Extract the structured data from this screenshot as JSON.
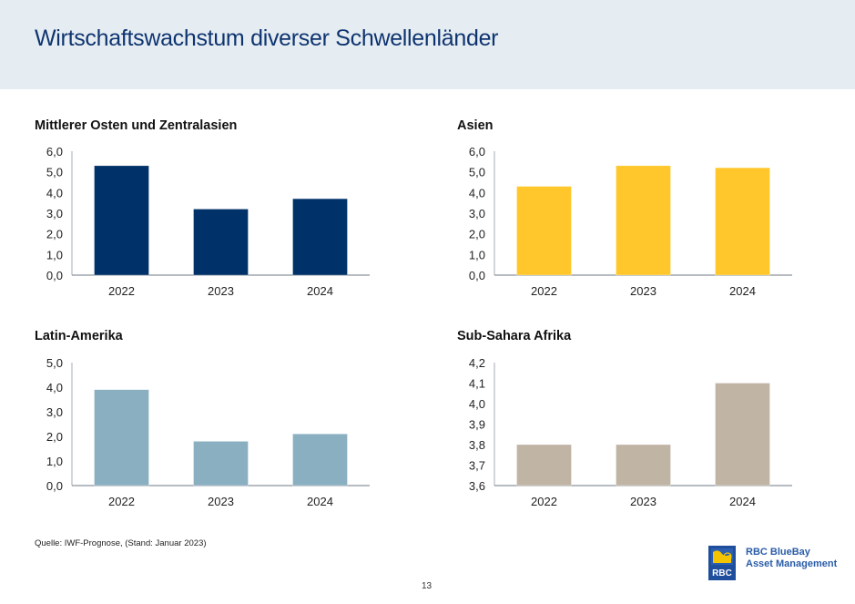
{
  "header": {
    "title": "Wirtschaftswachstum diverser Schwellenländer",
    "background": "#e6edf2",
    "title_color": "#0e3470"
  },
  "chart_data": [
    {
      "type": "bar",
      "title": "Mittlerer Osten und Zentralasien",
      "categories": [
        "2022",
        "2023",
        "2024"
      ],
      "values": [
        5.3,
        3.2,
        3.7
      ],
      "ylim": [
        0,
        6
      ],
      "yticks": [
        "0,0",
        "1,0",
        "2,0",
        "3,0",
        "4,0",
        "5,0",
        "6,0"
      ],
      "xlabel": "",
      "ylabel": "",
      "grid": false,
      "color": "#003168"
    },
    {
      "type": "bar",
      "title": "Asien",
      "categories": [
        "2022",
        "2023",
        "2024"
      ],
      "values": [
        4.3,
        5.3,
        5.2
      ],
      "ylim": [
        0,
        6
      ],
      "yticks": [
        "0,0",
        "1,0",
        "2,0",
        "3,0",
        "4,0",
        "5,0",
        "6,0"
      ],
      "xlabel": "",
      "ylabel": "",
      "grid": false,
      "color": "#ffc72c"
    },
    {
      "type": "bar",
      "title": "Latin-Amerika",
      "categories": [
        "2022",
        "2023",
        "2024"
      ],
      "values": [
        3.9,
        1.8,
        2.1
      ],
      "ylim": [
        0,
        5
      ],
      "yticks": [
        "0,0",
        "1,0",
        "2,0",
        "3,0",
        "4,0",
        "5,0"
      ],
      "xlabel": "",
      "ylabel": "",
      "grid": false,
      "color": "#8aafc0"
    },
    {
      "type": "bar",
      "title": "Sub-Sahara Afrika",
      "categories": [
        "2022",
        "2023",
        "2024"
      ],
      "values": [
        3.8,
        3.8,
        4.1
      ],
      "ylim": [
        3.6,
        4.2
      ],
      "yticks": [
        "3,6",
        "3,7",
        "3,8",
        "3,9",
        "4,0",
        "4,1",
        "4,2"
      ],
      "xlabel": "",
      "ylabel": "",
      "grid": false,
      "color": "#c0b4a4"
    }
  ],
  "footer": {
    "source": "Quelle: IWF-Prognose, (Stand: Januar 2023)",
    "page_number": "13",
    "logo_line1": "RBC BlueBay",
    "logo_line2": "Asset Management",
    "logo_badge": "RBC"
  }
}
